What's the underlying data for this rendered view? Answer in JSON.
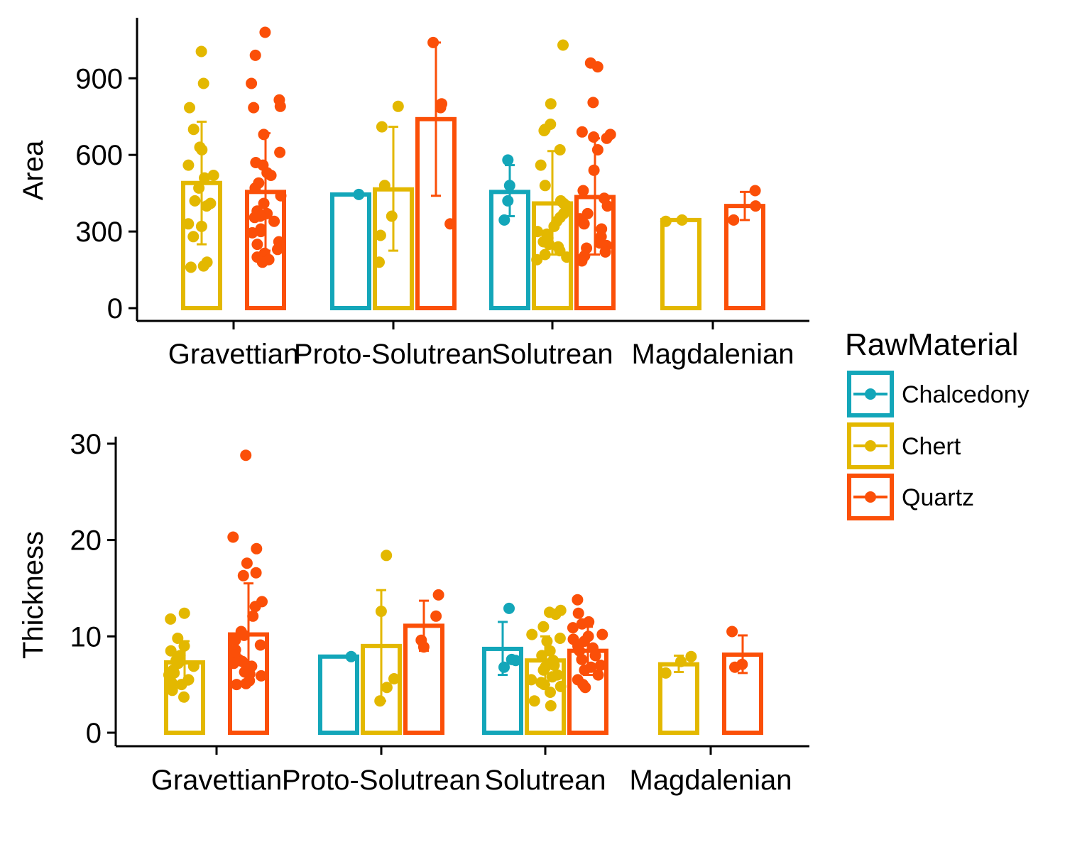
{
  "colors": {
    "Chalcedony": "#13A6B9",
    "Chert": "#E3B800",
    "Quartz": "#FB4F08",
    "errorbar_Chert": "#E3B800"
  },
  "legend": {
    "title": "RawMaterial",
    "entries": [
      "Chalcedony",
      "Chert",
      "Quartz"
    ]
  },
  "chart_data": [
    {
      "type": "bar",
      "overlay": [
        "jittered points",
        "error bars"
      ],
      "ylabel": "Area",
      "xlabel": "",
      "categories": [
        "Gravettian",
        "Proto-Solutrean",
        "Solutrean",
        "Magdalenian"
      ],
      "ylim": [
        0,
        1100
      ],
      "yticks": [
        0,
        300,
        600,
        900
      ],
      "series": [
        {
          "name": "Chalcedony",
          "values": [
            null,
            445,
            455,
            null
          ],
          "errors": [
            null,
            null,
            [
              360,
              560
            ],
            null
          ]
        },
        {
          "name": "Chert",
          "values": [
            490,
            465,
            410,
            345
          ],
          "errors": [
            [
              250,
              730
            ],
            [
              225,
              710
            ],
            [
              210,
              615
            ],
            null
          ]
        },
        {
          "name": "Quartz",
          "values": [
            455,
            740,
            435,
            400
          ],
          "errors": [
            [
              225,
              685
            ],
            [
              440,
              1040
            ],
            [
              210,
              665
            ],
            [
              345,
              455
            ]
          ]
        }
      ],
      "points": {
        "Chalcedony": [
          [],
          [
            445
          ],
          [
            345,
            420,
            480,
            580
          ],
          []
        ],
        "Chert": [
          [
            1005,
            880,
            785,
            700,
            630,
            620,
            560,
            520,
            510,
            470,
            420,
            410,
            400,
            330,
            320,
            280,
            180,
            160,
            165
          ],
          [
            790,
            710,
            480,
            360,
            285,
            180
          ],
          [
            1030,
            800,
            720,
            700,
            695,
            620,
            560,
            480,
            420,
            410,
            400,
            380,
            370,
            355,
            340,
            320,
            300,
            290,
            275,
            260,
            250,
            240,
            225,
            210,
            200,
            190
          ],
          [
            340,
            345
          ]
        ],
        "Quartz": [
          [
            1080,
            990,
            880,
            815,
            790,
            785,
            680,
            610,
            570,
            560,
            530,
            520,
            490,
            470,
            440,
            410,
            380,
            370,
            360,
            355,
            340,
            310,
            300,
            295,
            260,
            250,
            230,
            215,
            200,
            190,
            180
          ],
          [
            1040,
            800,
            785,
            330
          ],
          [
            960,
            945,
            805,
            690,
            680,
            670,
            665,
            620,
            540,
            460,
            430,
            400,
            370,
            350,
            330,
            310,
            280,
            255,
            245,
            235,
            220,
            205,
            190,
            185
          ],
          [
            460,
            400,
            345
          ]
        ]
      }
    },
    {
      "type": "bar",
      "overlay": [
        "jittered points",
        "error bars"
      ],
      "ylabel": "Thickness",
      "xlabel": "",
      "categories": [
        "Gravettian",
        "Proto-Solutrean",
        "Solutrean",
        "Magdalenian"
      ],
      "ylim": [
        0,
        30
      ],
      "yticks": [
        0,
        10,
        20,
        30
      ],
      "series": [
        {
          "name": "Chalcedony",
          "values": [
            null,
            7.9,
            8.7,
            null
          ],
          "errors": [
            null,
            null,
            [
              6.0,
              11.5
            ],
            null
          ]
        },
        {
          "name": "Chert",
          "values": [
            7.3,
            9.0,
            7.5,
            7.1
          ],
          "errors": [
            [
              5.0,
              9.5
            ],
            [
              3.3,
              14.8
            ],
            [
              5.0,
              10.0
            ],
            [
              6.3,
              8.0
            ]
          ]
        },
        {
          "name": "Quartz",
          "values": [
            10.2,
            11.1,
            8.5,
            8.1
          ],
          "errors": [
            [
              6.0,
              15.5
            ],
            [
              8.5,
              13.7
            ],
            [
              6.0,
              11.0
            ],
            [
              6.2,
              10.1
            ]
          ]
        }
      ],
      "points": {
        "Chalcedony": [
          [],
          [
            7.9
          ],
          [
            12.9,
            7.6,
            7.5,
            6.8
          ],
          []
        ],
        "Chert": [
          [
            12.4,
            11.8,
            9.8,
            9.0,
            8.5,
            8.0,
            7.5,
            7.2,
            6.9,
            6.5,
            6.2,
            6.0,
            5.5,
            5.2,
            5.0,
            4.4,
            3.7
          ],
          [
            18.4,
            12.6,
            5.6,
            4.7,
            3.3
          ],
          [
            12.7,
            12.5,
            12.3,
            11.0,
            10.2,
            9.8,
            9.5,
            8.5,
            8.0,
            7.5,
            7.0,
            6.8,
            6.5,
            6.0,
            5.8,
            5.5,
            5.2,
            5.0,
            4.8,
            4.2,
            3.3,
            2.8
          ],
          [
            7.9,
            7.4,
            6.2
          ]
        ],
        "Quartz": [
          [
            28.8,
            20.3,
            19.1,
            17.6,
            16.6,
            16.3,
            13.6,
            13.1,
            12.1,
            10.5,
            10.1,
            9.6,
            9.1,
            8.6,
            8.1,
            7.6,
            7.4,
            7.2,
            6.9,
            6.6,
            6.3,
            6.1,
            5.9,
            5.4,
            5.1,
            5.0
          ],
          [
            14.3,
            12.1,
            9.6,
            8.9
          ],
          [
            13.8,
            12.4,
            11.5,
            11.3,
            10.9,
            10.2,
            10.0,
            9.7,
            9.5,
            9.0,
            8.8,
            8.5,
            8.0,
            7.6,
            7.0,
            6.8,
            6.5,
            6.0,
            5.5,
            5.0,
            4.7
          ],
          [
            10.5,
            7.1,
            6.8
          ]
        ]
      }
    }
  ]
}
